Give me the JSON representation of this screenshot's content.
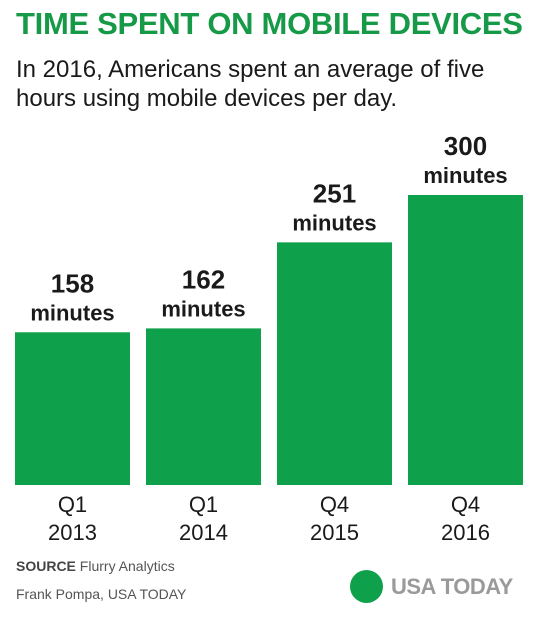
{
  "colors": {
    "title": "#169a47",
    "bar": "#0ea04a",
    "logo_dot": "#0ea04a",
    "logo_text": "#9a9a9a"
  },
  "chart_data": {
    "type": "bar",
    "title": "TIME SPENT ON MOBILE DEVICES",
    "subtitle": "In 2016, Americans spent an average of five hours using mobile devices per day.",
    "categories": [
      [
        "Q1",
        "2013"
      ],
      [
        "Q1",
        "2014"
      ],
      [
        "Q4",
        "2015"
      ],
      [
        "Q4",
        "2016"
      ]
    ],
    "values": [
      158,
      162,
      251,
      300
    ],
    "value_labels": [
      "158",
      "162",
      "251",
      "300"
    ],
    "unit_label": "minutes",
    "ylim": [
      0,
      300
    ],
    "grid": false,
    "legend": "none",
    "xlabel": "",
    "ylabel": ""
  },
  "footer": {
    "source_label": "SOURCE",
    "source_text": " Flurry Analytics",
    "credit": "Frank Pompa, USA TODAY",
    "logo_text": "USA TODAY"
  }
}
